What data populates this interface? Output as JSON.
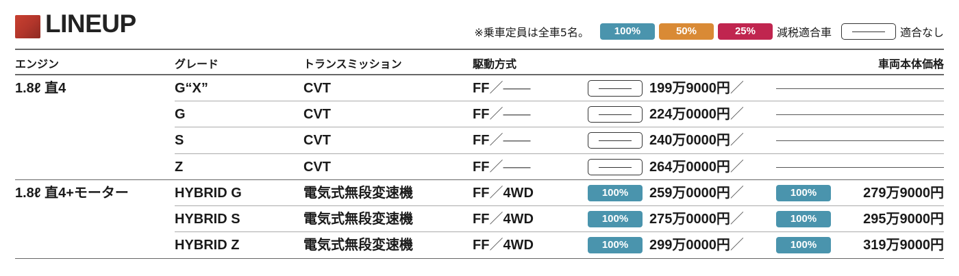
{
  "header": {
    "title": "LINEUP",
    "note": "※乗車定員は全車5名。"
  },
  "legend": [
    {
      "label": "100%",
      "color": "#4a94ad"
    },
    {
      "label": "50%",
      "color": "#d98a35"
    },
    {
      "label": "25%",
      "color": "#c0254f"
    }
  ],
  "legend_text": {
    "eligible": "減税適合車",
    "not_eligible": "適合なし"
  },
  "columns": {
    "engine": "エンジン",
    "grade": "グレード",
    "transmission": "トランスミッション",
    "drive": "駆動方式",
    "price": "車両本体価格"
  },
  "rows": [
    {
      "engine": "1.8ℓ 直4",
      "grade": "G“X”",
      "transmission": "CVT",
      "drive_ff": "FF",
      "drive_4wd": "——",
      "badge_ff": "",
      "price_ff": "199万9000円",
      "badge_4wd": "",
      "price_4wd": ""
    },
    {
      "engine": "",
      "grade": "G",
      "transmission": "CVT",
      "drive_ff": "FF",
      "drive_4wd": "——",
      "badge_ff": "",
      "price_ff": "224万0000円",
      "badge_4wd": "",
      "price_4wd": ""
    },
    {
      "engine": "",
      "grade": "S",
      "transmission": "CVT",
      "drive_ff": "FF",
      "drive_4wd": "——",
      "badge_ff": "",
      "price_ff": "240万0000円",
      "badge_4wd": "",
      "price_4wd": ""
    },
    {
      "engine": "",
      "grade": "Z",
      "transmission": "CVT",
      "drive_ff": "FF",
      "drive_4wd": "——",
      "badge_ff": "",
      "price_ff": "264万0000円",
      "badge_4wd": "",
      "price_4wd": ""
    },
    {
      "engine": "1.8ℓ 直4+モーター",
      "grade": "HYBRID G",
      "transmission": "電気式無段変速機",
      "drive_ff": "FF",
      "drive_4wd": "4WD",
      "badge_ff": "100%",
      "price_ff": "259万0000円",
      "badge_4wd": "100%",
      "price_4wd": "279万9000円"
    },
    {
      "engine": "",
      "grade": "HYBRID S",
      "transmission": "電気式無段変速機",
      "drive_ff": "FF",
      "drive_4wd": "4WD",
      "badge_ff": "100%",
      "price_ff": "275万0000円",
      "badge_4wd": "100%",
      "price_4wd": "295万9000円"
    },
    {
      "engine": "",
      "grade": "HYBRID Z",
      "transmission": "電気式無段変速機",
      "drive_ff": "FF",
      "drive_4wd": "4WD",
      "badge_ff": "100%",
      "price_ff": "299万0000円",
      "badge_4wd": "100%",
      "price_4wd": "319万9000円"
    }
  ],
  "slash": "／"
}
